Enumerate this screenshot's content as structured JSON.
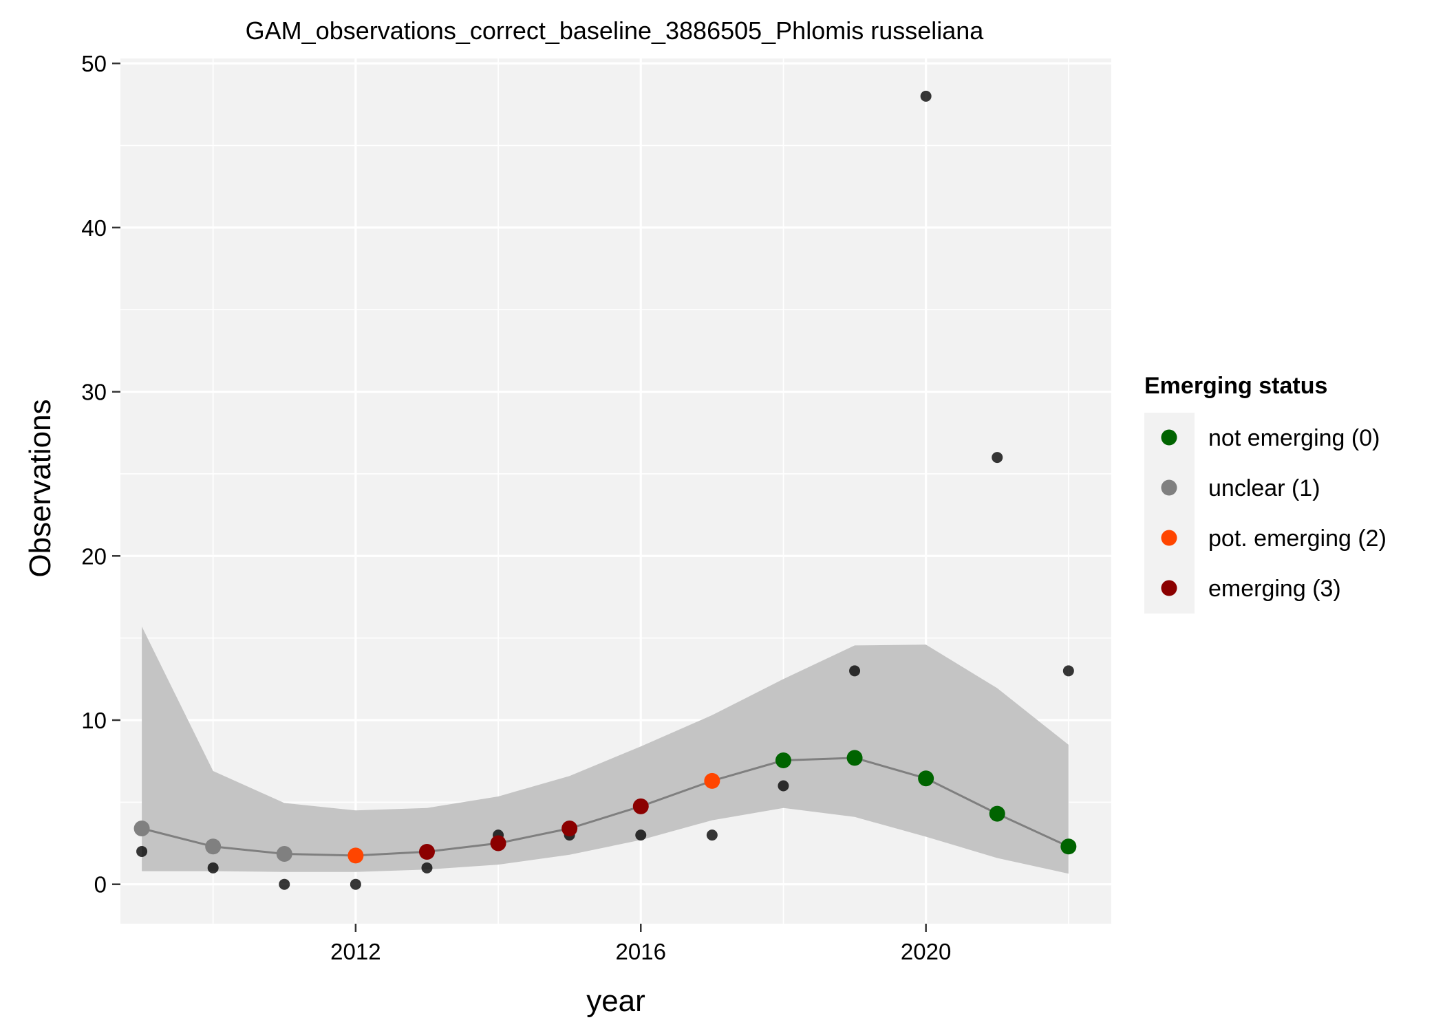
{
  "chart_data": {
    "type": "scatter",
    "title": "GAM_observations_correct_baseline_3886505_Phlomis russeliana",
    "xlabel": "year",
    "ylabel": "Observations",
    "xlim": [
      2008.7,
      2022.6
    ],
    "ylim": [
      -2.4,
      50.3
    ],
    "x_ticks": [
      2012,
      2016,
      2020
    ],
    "y_ticks": [
      0,
      10,
      20,
      30,
      40,
      50
    ],
    "grid": true,
    "legend_position": "right",
    "legend": {
      "title": "Emerging status",
      "entries": [
        {
          "label": "not emerging (0)",
          "color": "#006400"
        },
        {
          "label": "unclear (1)",
          "color": "#808080"
        },
        {
          "label": "pot. emerging (2)",
          "color": "#FF4500"
        },
        {
          "label": "emerging (3)",
          "color": "#8B0000"
        }
      ]
    },
    "observed": {
      "color": "#000000",
      "points": [
        {
          "x": 2009,
          "y": 2
        },
        {
          "x": 2010,
          "y": 1
        },
        {
          "x": 2011,
          "y": 0
        },
        {
          "x": 2012,
          "y": 0
        },
        {
          "x": 2013,
          "y": 1
        },
        {
          "x": 2014,
          "y": 3
        },
        {
          "x": 2015,
          "y": 3
        },
        {
          "x": 2016,
          "y": 3
        },
        {
          "x": 2017,
          "y": 3
        },
        {
          "x": 2018,
          "y": 6
        },
        {
          "x": 2019,
          "y": 13
        },
        {
          "x": 2020,
          "y": 48
        },
        {
          "x": 2021,
          "y": 26
        },
        {
          "x": 2022,
          "y": 13
        }
      ]
    },
    "fit": {
      "line_color": "#7f7f7f",
      "band_color": "#c4c4c4",
      "points": [
        {
          "x": 2009,
          "y": 3.4,
          "lower": 0.8,
          "upper": 15.7,
          "status": 1
        },
        {
          "x": 2010,
          "y": 2.3,
          "lower": 0.8,
          "upper": 6.9,
          "status": 1
        },
        {
          "x": 2011,
          "y": 1.85,
          "lower": 0.75,
          "upper": 4.95,
          "status": 1
        },
        {
          "x": 2012,
          "y": 1.75,
          "lower": 0.75,
          "upper": 4.5,
          "status": 2
        },
        {
          "x": 2013,
          "y": 1.98,
          "lower": 0.9,
          "upper": 4.65,
          "status": 3
        },
        {
          "x": 2014,
          "y": 2.5,
          "lower": 1.2,
          "upper": 5.35,
          "status": 3
        },
        {
          "x": 2015,
          "y": 3.4,
          "lower": 1.8,
          "upper": 6.6,
          "status": 3
        },
        {
          "x": 2016,
          "y": 4.75,
          "lower": 2.7,
          "upper": 8.4,
          "status": 3
        },
        {
          "x": 2017,
          "y": 6.3,
          "lower": 3.9,
          "upper": 10.3,
          "status": 2
        },
        {
          "x": 2018,
          "y": 7.55,
          "lower": 4.65,
          "upper": 12.5,
          "status": 0
        },
        {
          "x": 2019,
          "y": 7.7,
          "lower": 4.1,
          "upper": 14.55,
          "status": 0
        },
        {
          "x": 2020,
          "y": 6.45,
          "lower": 2.9,
          "upper": 14.6,
          "status": 0
        },
        {
          "x": 2021,
          "y": 4.3,
          "lower": 1.6,
          "upper": 11.95,
          "status": 0
        },
        {
          "x": 2022,
          "y": 2.3,
          "lower": 0.65,
          "upper": 8.5,
          "status": 0
        }
      ]
    }
  }
}
